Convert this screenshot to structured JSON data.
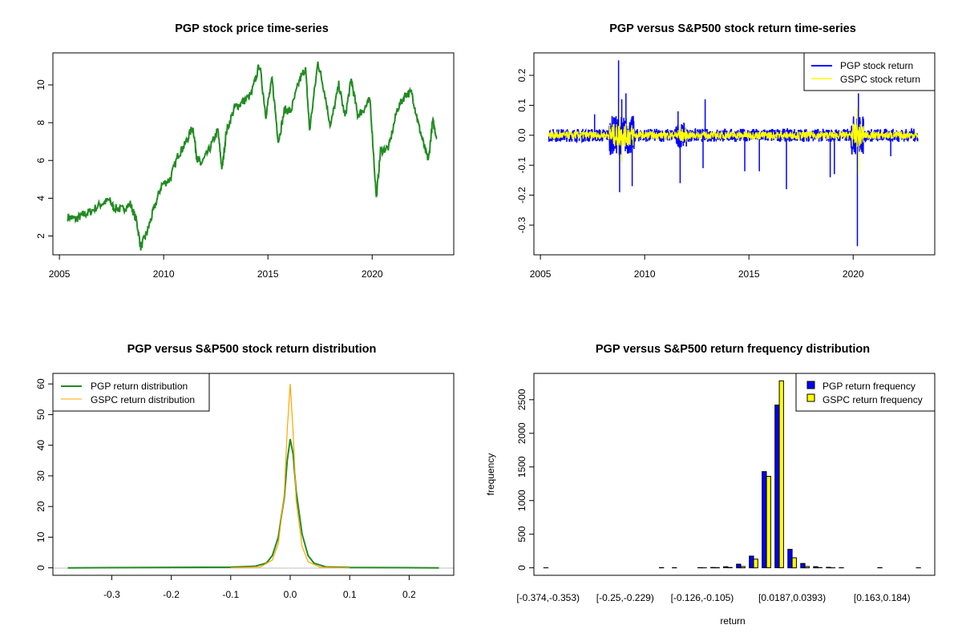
{
  "chart_data": [
    {
      "type": "line",
      "title": "PGP stock price time-series",
      "xlabel": "",
      "ylabel": "",
      "xlim": [
        2005.4,
        2023.2
      ],
      "ylim": [
        1.4,
        11.3
      ],
      "xticks": [
        "2005",
        "2010",
        "2015",
        "2020"
      ],
      "yticks": [
        "2",
        "4",
        "6",
        "8",
        "10"
      ],
      "color": "#228B22",
      "x": [
        2005.4,
        2005.8,
        2006.1,
        2006.5,
        2007.0,
        2007.4,
        2007.6,
        2008.0,
        2008.4,
        2008.7,
        2008.9,
        2009.2,
        2009.5,
        2009.9,
        2010.3,
        2010.7,
        2011.0,
        2011.4,
        2011.6,
        2011.8,
        2012.2,
        2012.6,
        2012.8,
        2013.0,
        2013.4,
        2013.7,
        2014.2,
        2014.6,
        2014.9,
        2015.2,
        2015.5,
        2015.8,
        2016.1,
        2016.5,
        2016.8,
        2017.0,
        2017.4,
        2017.7,
        2018.0,
        2018.4,
        2018.7,
        2019.0,
        2019.3,
        2019.6,
        2019.9,
        2020.2,
        2020.4,
        2020.8,
        2021.2,
        2021.6,
        2021.9,
        2022.2,
        2022.5,
        2022.7,
        2022.9,
        2023.1
      ],
      "values": [
        3.0,
        2.9,
        3.1,
        3.3,
        3.7,
        3.9,
        3.5,
        3.4,
        3.7,
        2.8,
        1.4,
        2.2,
        3.3,
        4.7,
        5.0,
        6.3,
        6.8,
        7.8,
        6.1,
        5.8,
        6.6,
        7.6,
        5.5,
        7.5,
        8.8,
        9.0,
        9.5,
        11.1,
        8.4,
        10.3,
        7.0,
        8.7,
        8.6,
        10.2,
        10.9,
        7.6,
        11.2,
        9.7,
        7.8,
        10.0,
        8.3,
        10.3,
        8.4,
        8.7,
        9.2,
        4.0,
        6.5,
        6.7,
        8.7,
        9.5,
        9.6,
        8.0,
        6.7,
        6.0,
        8.1,
        7.2
      ]
    },
    {
      "type": "line",
      "title": "PGP versus S&P500 stock return time-series",
      "xlabel": "",
      "ylabel": "",
      "xlim": [
        2005.4,
        2023.2
      ],
      "ylim": [
        -0.374,
        0.25
      ],
      "xticks": [
        "2005",
        "2010",
        "2015",
        "2020"
      ],
      "yticks": [
        "-0.3",
        "-0.2",
        "-0.1",
        "0.0",
        "0.1",
        "0.2"
      ],
      "legend": {
        "position": "top-right",
        "entries": [
          "PGP stock return",
          "GSPC stock return"
        ]
      },
      "series": [
        {
          "name": "PGP stock return",
          "color": "#0000FF",
          "x": [
            2007.6,
            2008.75,
            2008.8,
            2008.9,
            2009.1,
            2009.4,
            2011.6,
            2011.7,
            2012.8,
            2012.9,
            2014.8,
            2015.5,
            2016.8,
            2018.9,
            2019.1,
            2020.2,
            2020.25,
            2021.8
          ],
          "values": [
            0.07,
            0.25,
            -0.19,
            0.12,
            0.14,
            -0.17,
            0.08,
            -0.16,
            -0.11,
            0.12,
            -0.12,
            -0.12,
            -0.18,
            -0.14,
            -0.13,
            -0.37,
            0.14,
            -0.07
          ]
        },
        {
          "name": "GSPC stock return",
          "color": "#FFFF00",
          "x": [
            2008.8,
            2008.9,
            2020.2,
            2020.25
          ],
          "values": [
            0.11,
            -0.09,
            0.09,
            -0.13
          ]
        }
      ]
    },
    {
      "type": "line",
      "title": "PGP versus S&P500 stock return distribution",
      "xlabel": "",
      "ylabel": "",
      "xlim": [
        -0.374,
        0.25
      ],
      "ylim": [
        0,
        61
      ],
      "xticks": [
        "-0.3",
        "-0.2",
        "-0.1",
        "0.0",
        "0.1",
        "0.2"
      ],
      "yticks": [
        "0",
        "10",
        "20",
        "30",
        "40",
        "50",
        "60"
      ],
      "legend": {
        "position": "top-left",
        "entries": [
          "PGP return distribution",
          "GSPC return distribution"
        ]
      },
      "series": [
        {
          "name": "PGP return distribution",
          "color": "#228B22",
          "x": [
            -0.374,
            -0.1,
            -0.06,
            -0.04,
            -0.03,
            -0.02,
            -0.01,
            -0.005,
            0.0,
            0.005,
            0.01,
            0.02,
            0.03,
            0.04,
            0.06,
            0.1,
            0.25
          ],
          "values": [
            0,
            0.2,
            0.5,
            1.5,
            4,
            10,
            23,
            35,
            42,
            37,
            25,
            11,
            4,
            1.5,
            0.3,
            0.1,
            0
          ]
        },
        {
          "name": "GSPC return distribution",
          "color": "#FFA500",
          "x": [
            -0.1,
            -0.05,
            -0.03,
            -0.02,
            -0.01,
            -0.005,
            0.0,
            0.005,
            0.01,
            0.02,
            0.03,
            0.05,
            0.1
          ],
          "values": [
            0,
            0.3,
            2.5,
            8,
            24,
            45,
            60,
            44,
            22,
            7,
            2,
            0.2,
            0
          ]
        }
      ]
    },
    {
      "type": "bar",
      "title": "PGP versus S&P500 return frequency distribution",
      "xlabel": "return",
      "ylabel": "frequency",
      "ylim": [
        0,
        2780
      ],
      "yticks": [
        "0",
        "500",
        "1000",
        "1500",
        "2000",
        "2500"
      ],
      "tick_labels": [
        "[-0.374,-0.353)",
        "[-0.25,-0.229)",
        "[-0.126,-0.105)",
        "[0.0187,0.0393)",
        "[0.163,0.184)"
      ],
      "tick_bins": [
        0,
        6,
        12,
        19,
        26
      ],
      "legend": {
        "position": "top-right",
        "entries": [
          "PGP return frequency",
          "GSPC return frequency"
        ]
      },
      "series": [
        {
          "name": "PGP return frequency",
          "color": "#0000FF",
          "values": [
            1,
            0,
            0,
            0,
            0,
            0,
            0,
            0,
            0,
            3,
            2,
            0,
            3,
            6,
            16,
            55,
            175,
            1430,
            2420,
            275,
            65,
            18,
            8,
            2,
            0,
            0,
            3,
            0,
            0,
            1
          ]
        },
        {
          "name": "GSPC return frequency",
          "color": "#FFFF00",
          "values": [
            0,
            0,
            0,
            0,
            0,
            0,
            0,
            0,
            0,
            0,
            0,
            0,
            1,
            3,
            5,
            20,
            130,
            1360,
            2780,
            150,
            20,
            4,
            1,
            0,
            0,
            0,
            0,
            0,
            0,
            0
          ]
        }
      ]
    }
  ]
}
